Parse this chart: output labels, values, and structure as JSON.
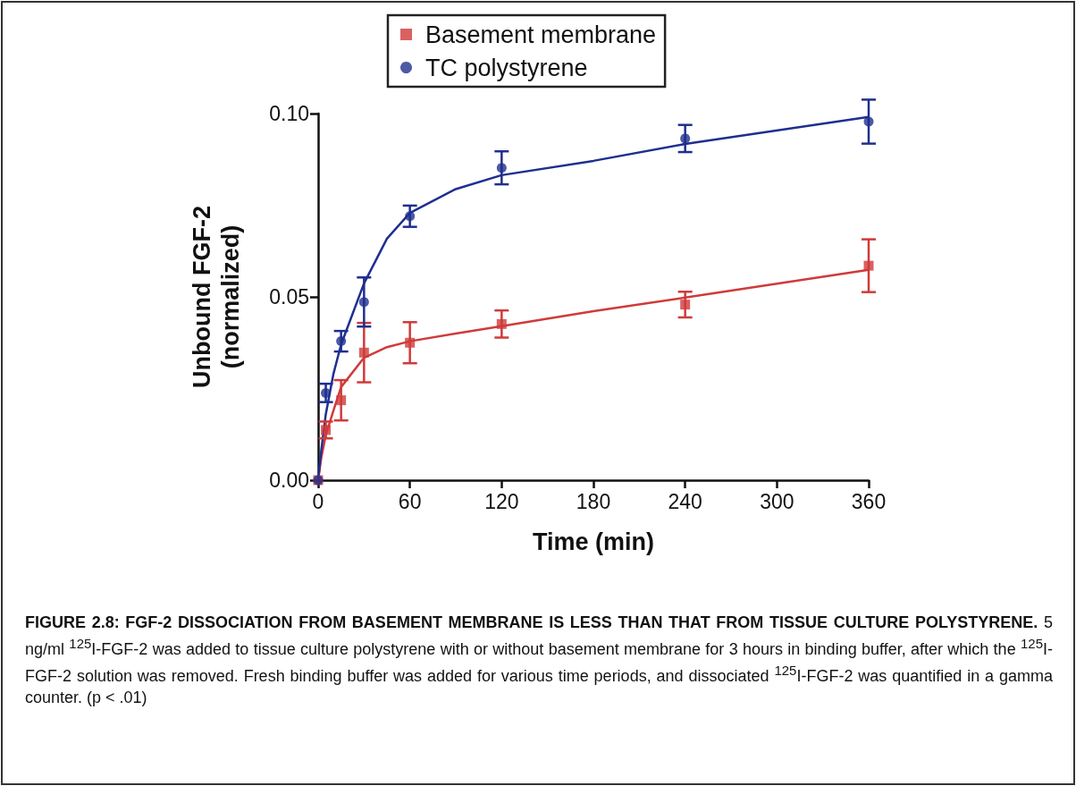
{
  "chart_data": {
    "type": "scatter",
    "xlabel": "Time (min)",
    "ylabel": "Unbound FGF-2\n(normalized)",
    "xlim": [
      0,
      360
    ],
    "xticks": [
      0,
      60,
      120,
      180,
      240,
      300,
      360
    ],
    "ylim": [
      0,
      0.1
    ],
    "yticks": [
      {
        "value": 0,
        "label": "0.00"
      },
      {
        "value": 0.05,
        "label": "0.05"
      },
      {
        "value": 0.1,
        "label": "0.10"
      }
    ],
    "grid": false,
    "legend": "top",
    "series": [
      {
        "name": "Basement membrane",
        "marker": "square",
        "color": "#d03a3a",
        "x": [
          0,
          5,
          15,
          30,
          60,
          120,
          240,
          360
        ],
        "values": [
          0,
          0.0137,
          0.0218,
          0.0348,
          0.0375,
          0.0426,
          0.0479,
          0.0585
        ],
        "errors": [
          null,
          0.0023,
          0.0055,
          0.0081,
          0.0056,
          0.0037,
          0.0035,
          0.0072
        ]
      },
      {
        "name": "TC polystyrene",
        "marker": "circle",
        "color": "#1f2f8f",
        "x": [
          0,
          5,
          15,
          30,
          60,
          120,
          240,
          360
        ],
        "values": [
          0,
          0.0238,
          0.0379,
          0.0486,
          0.072,
          0.0852,
          0.0932,
          0.0978
        ],
        "errors": [
          null,
          0.0025,
          0.0028,
          0.0067,
          0.0029,
          0.0045,
          0.0037,
          0.006
        ]
      },
      {
        "type": "line",
        "color": "#d03a3a",
        "x": [
          0,
          2,
          5,
          10,
          15,
          30,
          45,
          60,
          90,
          120,
          180,
          240,
          360
        ],
        "values": [
          0,
          0.006,
          0.0123,
          0.019,
          0.0254,
          0.0334,
          0.0363,
          0.0379,
          0.04,
          0.042,
          0.0461,
          0.0498,
          0.0574
        ]
      },
      {
        "type": "line",
        "color": "#1f2f8f",
        "x": [
          0,
          2,
          5,
          10,
          15,
          30,
          45,
          60,
          90,
          120,
          180,
          240,
          360
        ],
        "values": [
          0,
          0.008,
          0.018,
          0.029,
          0.037,
          0.0537,
          0.0659,
          0.0729,
          0.0794,
          0.0832,
          0.0871,
          0.0917,
          0.0991
        ]
      }
    ],
    "annotations": [
      "FIGURE 2.8: FGF-2 DISSOCIATION FROM BASEMENT MEMBRANE IS LESS THAN THAT FROM TISSUE CULTURE POLYSTYRENE.",
      "5 ng/ml $^{125}$I-FGF-2 was added to tissue culture polystyrene with or without basement membrane for 3 hours in binding buffer, after which the $^{125}$I-FGF-2 solution was removed. Fresh binding buffer was added for various time periods, and dissociated $^{125}$I-FGF-2 was quantified in a gamma counter. (p < .01)"
    ]
  }
}
